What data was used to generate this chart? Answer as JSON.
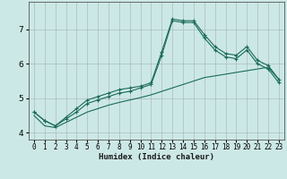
{
  "xlabel": "Humidex (Indice chaleur)",
  "ylabel": "",
  "background_color": "#cce8e6",
  "grid_color": "#aabcbb",
  "line_color": "#1a6b5a",
  "x_values": [
    0,
    1,
    2,
    3,
    4,
    5,
    6,
    7,
    8,
    9,
    10,
    11,
    12,
    13,
    14,
    15,
    16,
    17,
    18,
    19,
    20,
    21,
    22,
    23
  ],
  "line1": [
    4.6,
    4.35,
    4.2,
    4.45,
    4.7,
    4.95,
    5.05,
    5.15,
    5.25,
    5.3,
    5.35,
    5.45,
    6.35,
    7.3,
    7.25,
    7.25,
    6.85,
    6.5,
    6.3,
    6.25,
    6.5,
    6.1,
    5.95,
    5.55
  ],
  "line2": [
    4.6,
    4.35,
    4.2,
    4.4,
    4.6,
    4.85,
    4.95,
    5.05,
    5.15,
    5.2,
    5.3,
    5.4,
    6.25,
    7.25,
    7.2,
    7.2,
    6.75,
    6.4,
    6.2,
    6.15,
    6.4,
    6.0,
    5.85,
    5.45
  ],
  "line3": [
    4.5,
    4.2,
    4.15,
    4.3,
    4.45,
    4.6,
    4.7,
    4.8,
    4.88,
    4.95,
    5.02,
    5.1,
    5.2,
    5.3,
    5.4,
    5.5,
    5.6,
    5.65,
    5.7,
    5.75,
    5.8,
    5.85,
    5.9,
    5.55
  ],
  "xlim": [
    -0.5,
    23.5
  ],
  "ylim": [
    3.8,
    7.8
  ],
  "yticks": [
    4,
    5,
    6,
    7
  ],
  "xtick_labels": [
    "0",
    "1",
    "2",
    "3",
    "4",
    "5",
    "6",
    "7",
    "8",
    "9",
    "10",
    "11",
    "12",
    "13",
    "14",
    "15",
    "16",
    "17",
    "18",
    "19",
    "20",
    "21",
    "22",
    "23"
  ]
}
